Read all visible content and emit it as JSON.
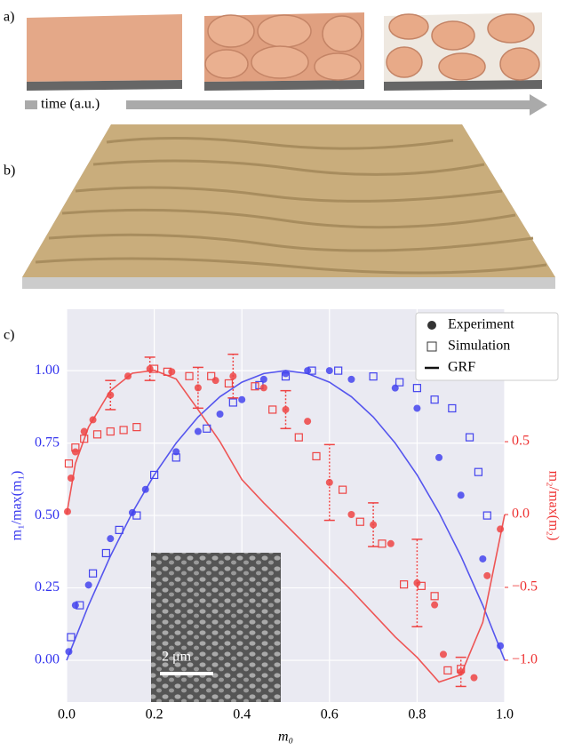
{
  "panels": {
    "a": "a)",
    "b": "b)",
    "c": "c)",
    "arrow_label": "time (a.u.)",
    "inset_scale": "2 μm"
  },
  "chart_data": {
    "type": "scatter",
    "xlabel": "m₀",
    "ylabel": "m₁/max(m₁)",
    "y2label": "m₂/max(m₂)",
    "xlim": [
      0,
      1
    ],
    "ylim": [
      -0.144,
      1.212
    ],
    "y2lim": [
      -1.287,
      1.409
    ],
    "xticks": [
      {
        "value": 0,
        "label": "0.0"
      },
      {
        "value": 0.2,
        "label": "0.2"
      },
      {
        "value": 0.4,
        "label": "0.4"
      },
      {
        "value": 0.6,
        "label": "0.6"
      },
      {
        "value": 0.8,
        "label": "0.8"
      },
      {
        "value": 1,
        "label": "1.0"
      }
    ],
    "yticks": [
      {
        "value": 0,
        "label": "0.00"
      },
      {
        "value": 0.25,
        "label": "0.25"
      },
      {
        "value": 0.5,
        "label": "0.50"
      },
      {
        "value": 0.75,
        "label": "0.75"
      },
      {
        "value": 1,
        "label": "1.00"
      }
    ],
    "y2ticks": [
      {
        "value": -1,
        "label": "−1.0"
      },
      {
        "value": -0.5,
        "label": "−0.5"
      },
      {
        "value": 0,
        "label": "0.0"
      },
      {
        "value": 0.5,
        "label": "0.5"
      }
    ],
    "y_color": "#3333ee",
    "y2_color": "#ee3333",
    "grid": true,
    "legend_position": "upper right",
    "legend": [
      {
        "label": "Experiment",
        "marker": "circle"
      },
      {
        "label": "Simulation",
        "marker": "square"
      },
      {
        "label": "GRF",
        "marker": "line"
      }
    ],
    "series": [
      {
        "marker": "line",
        "color": "#5555ee",
        "axis": "y",
        "x": [
          0,
          0.05,
          0.1,
          0.15,
          0.2,
          0.25,
          0.3,
          0.35,
          0.4,
          0.45,
          0.5,
          0.55,
          0.6,
          0.65,
          0.7,
          0.75,
          0.8,
          0.85,
          0.9,
          0.95,
          1
        ],
        "values": [
          0,
          0.19,
          0.36,
          0.51,
          0.64,
          0.75,
          0.84,
          0.91,
          0.96,
          0.99,
          1,
          0.99,
          0.96,
          0.91,
          0.84,
          0.75,
          0.64,
          0.51,
          0.36,
          0.19,
          0
        ]
      },
      {
        "marker": "line",
        "color": "#ee5555",
        "axis": "y2",
        "x": [
          0,
          0.02,
          0.05,
          0.1,
          0.15,
          0.2,
          0.25,
          0.3,
          0.35,
          0.4,
          0.45,
          0.5,
          0.55,
          0.6,
          0.65,
          0.7,
          0.75,
          0.8,
          0.85,
          0.9,
          0.95,
          1
        ],
        "values": [
          0,
          0.35,
          0.6,
          0.85,
          0.97,
          0.99,
          0.93,
          0.72,
          0.5,
          0.24,
          0.08,
          -0.07,
          -0.22,
          -0.37,
          -0.52,
          -0.68,
          -0.84,
          -0.98,
          -1.15,
          -1.1,
          -0.74,
          0
        ]
      },
      {
        "marker": "circle",
        "color": "#4444ee",
        "axis": "y",
        "x": [
          0.005,
          0.02,
          0.05,
          0.1,
          0.15,
          0.18,
          0.25,
          0.3,
          0.35,
          0.4,
          0.45,
          0.5,
          0.55,
          0.6,
          0.65,
          0.75,
          0.8,
          0.85,
          0.9,
          0.95,
          0.99
        ],
        "values": [
          0.03,
          0.19,
          0.26,
          0.42,
          0.51,
          0.59,
          0.72,
          0.79,
          0.85,
          0.9,
          0.97,
          0.99,
          1.0,
          1.0,
          0.97,
          0.94,
          0.87,
          0.7,
          0.57,
          0.35,
          0.05
        ]
      },
      {
        "marker": "square",
        "color": "#4444ee",
        "axis": "y",
        "x": [
          0.01,
          0.03,
          0.06,
          0.09,
          0.12,
          0.16,
          0.2,
          0.25,
          0.32,
          0.38,
          0.44,
          0.5,
          0.56,
          0.62,
          0.7,
          0.76,
          0.8,
          0.84,
          0.88,
          0.92,
          0.94,
          0.96
        ],
        "values": [
          0.08,
          0.19,
          0.3,
          0.37,
          0.45,
          0.5,
          0.64,
          0.7,
          0.8,
          0.89,
          0.95,
          0.98,
          1.0,
          1.0,
          0.98,
          0.96,
          0.94,
          0.9,
          0.87,
          0.77,
          0.65,
          0.5
        ]
      },
      {
        "marker": "circle",
        "color": "#ee4444",
        "axis": "y2",
        "x": [
          0.002,
          0.01,
          0.02,
          0.04,
          0.06,
          0.1,
          0.14,
          0.19,
          0.24,
          0.3,
          0.34,
          0.38,
          0.45,
          0.5,
          0.55,
          0.6,
          0.65,
          0.7,
          0.74,
          0.8,
          0.84,
          0.86,
          0.9,
          0.93,
          0.96,
          0.99
        ],
        "values": [
          0.02,
          0.25,
          0.43,
          0.57,
          0.65,
          0.82,
          0.95,
          1.0,
          0.98,
          0.87,
          0.92,
          0.95,
          0.87,
          0.72,
          0.64,
          0.22,
          0.0,
          -0.07,
          -0.2,
          -0.47,
          -0.62,
          -0.96,
          -1.08,
          -1.12,
          -0.42,
          -0.1
        ],
        "errors": [
          null,
          null,
          null,
          null,
          null,
          0.1,
          null,
          0.08,
          null,
          0.14,
          null,
          0.15,
          null,
          0.13,
          null,
          0.26,
          null,
          0.15,
          null,
          0.3,
          null,
          null,
          0.1,
          null,
          null,
          null
        ]
      },
      {
        "marker": "square",
        "color": "#ee4444",
        "axis": "y2",
        "x": [
          0.005,
          0.02,
          0.04,
          0.07,
          0.1,
          0.13,
          0.16,
          0.2,
          0.23,
          0.28,
          0.33,
          0.37,
          0.43,
          0.47,
          0.53,
          0.57,
          0.63,
          0.67,
          0.72,
          0.77,
          0.81,
          0.84,
          0.87,
          0.9
        ],
        "values": [
          0.35,
          0.46,
          0.52,
          0.55,
          0.57,
          0.58,
          0.6,
          1.0,
          0.98,
          0.95,
          0.95,
          0.9,
          0.88,
          0.72,
          0.53,
          0.4,
          0.17,
          -0.05,
          -0.2,
          -0.48,
          -0.49,
          -0.56,
          -1.07,
          -1.06
        ]
      }
    ]
  }
}
